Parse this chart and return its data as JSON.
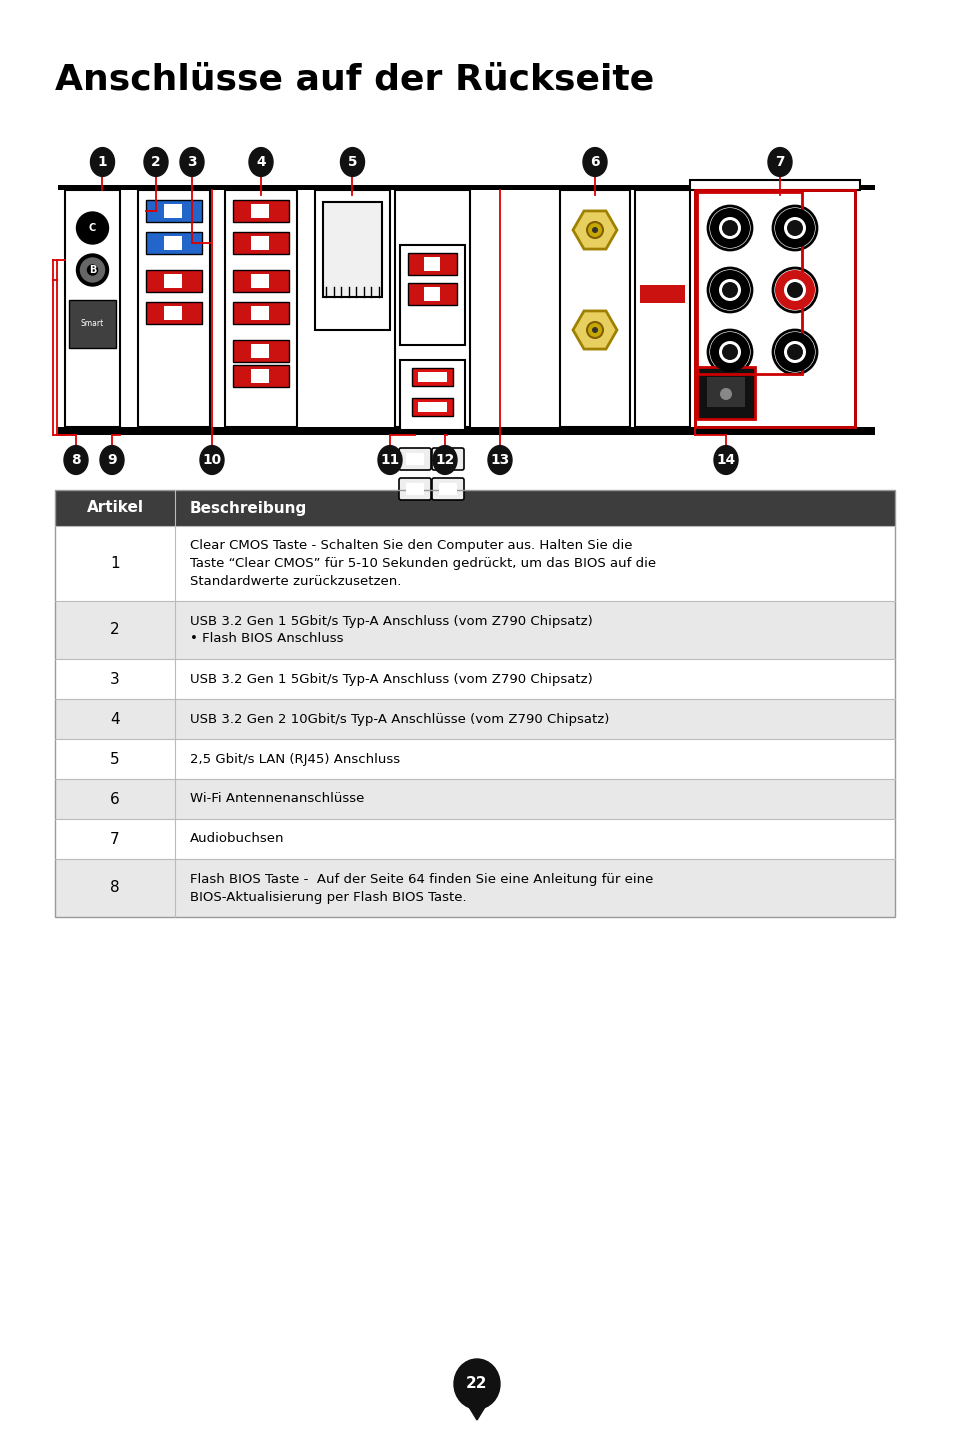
{
  "title": "Anschlüsse auf der Rückseite",
  "bg_color": "#ffffff",
  "title_color": "#000000",
  "title_fontsize": 26,
  "header_bg": "#3d3d3d",
  "header_fg": "#ffffff",
  "row_colors": [
    "#ffffff",
    "#e8e8e8"
  ],
  "table_headers": [
    "Artikel",
    "Beschreibung"
  ],
  "table_rows": [
    [
      "1",
      "Clear CMOS Taste - Schalten Sie den Computer aus. Halten Sie die\nTaste “Clear CMOS” für 5-10 Sekunden gedrückt, um das BIOS auf die\nStandardwerte zurückzusetzen."
    ],
    [
      "2",
      "USB 3.2 Gen 1 5Gbit/s Typ-A Anschluss (vom Z790 Chipsatz)\n• Flash BIOS Anschluss"
    ],
    [
      "3",
      "USB 3.2 Gen 1 5Gbit/s Typ-A Anschluss (vom Z790 Chipsatz)"
    ],
    [
      "4",
      "USB 3.2 Gen 2 10Gbit/s Typ-A Anschlüsse (vom Z790 Chipsatz)"
    ],
    [
      "5",
      "2,5 Gbit/s LAN (RJ45) Anschluss"
    ],
    [
      "6",
      "Wi-Fi Antennenanschlüsse"
    ],
    [
      "7",
      "Audiobuchsen"
    ],
    [
      "8",
      "Flash BIOS Taste -  Auf der Seite 64 finden Sie eine Anleitung für eine\nBIOS-Aktualisierung per Flash BIOS Taste."
    ]
  ],
  "page_number": "22"
}
